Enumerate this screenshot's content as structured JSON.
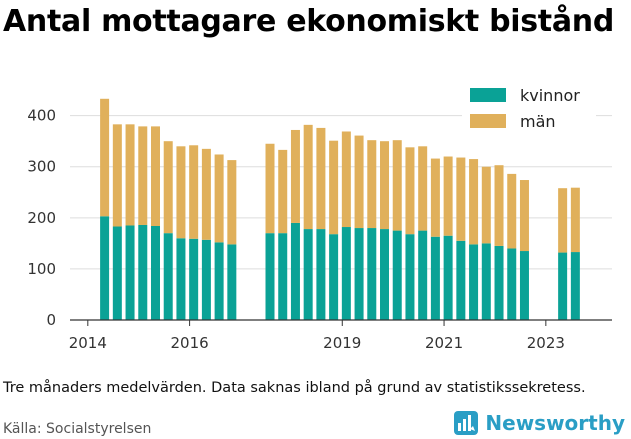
{
  "title": "Antal mottagare ekonomiskt bistånd",
  "caption": "Tre månaders medelvärden. Data saknas ibland på grund av statistikssekretess.",
  "source": "Källa: Socialstyrelsen",
  "brand": {
    "name": "Newsworthy",
    "icon": "newsworthy-logo-icon",
    "color": "#2a9ec5"
  },
  "chart_data": {
    "type": "bar",
    "stacked": true,
    "title": "Antal mottagare ekonomiskt bistånd",
    "xlabel": "",
    "ylabel": "",
    "ylim": [
      0,
      460
    ],
    "yticks": [
      0,
      100,
      200,
      300,
      400
    ],
    "xlim": [
      2013.65,
      2024.3
    ],
    "xticks": [
      2014,
      2016,
      2019,
      2021,
      2023
    ],
    "grid": "horizontal",
    "legend_position": "top-right",
    "x": [
      2014.33,
      2014.58,
      2014.83,
      2015.08,
      2015.33,
      2015.58,
      2015.83,
      2016.08,
      2016.33,
      2016.58,
      2016.83,
      2017.58,
      2017.83,
      2018.08,
      2018.33,
      2018.58,
      2018.83,
      2019.08,
      2019.33,
      2019.58,
      2019.83,
      2020.08,
      2020.33,
      2020.58,
      2020.83,
      2021.08,
      2021.33,
      2021.58,
      2021.83,
      2022.08,
      2022.33,
      2022.58,
      2023.33,
      2023.58
    ],
    "series": [
      {
        "name": "kvinnor",
        "color": "#0aa296",
        "values": [
          203,
          183,
          185,
          186,
          184,
          170,
          160,
          159,
          157,
          152,
          148,
          170,
          170,
          190,
          178,
          178,
          168,
          182,
          180,
          180,
          178,
          175,
          168,
          175,
          163,
          165,
          155,
          148,
          150,
          145,
          140,
          135,
          132,
          133
        ]
      },
      {
        "name": "män",
        "color": "#e0b05b",
        "values": [
          230,
          200,
          198,
          193,
          195,
          180,
          180,
          183,
          178,
          172,
          165,
          175,
          163,
          182,
          204,
          198,
          183,
          187,
          181,
          172,
          172,
          177,
          170,
          165,
          153,
          155,
          163,
          167,
          150,
          158,
          146,
          139,
          126,
          126
        ]
      }
    ]
  }
}
